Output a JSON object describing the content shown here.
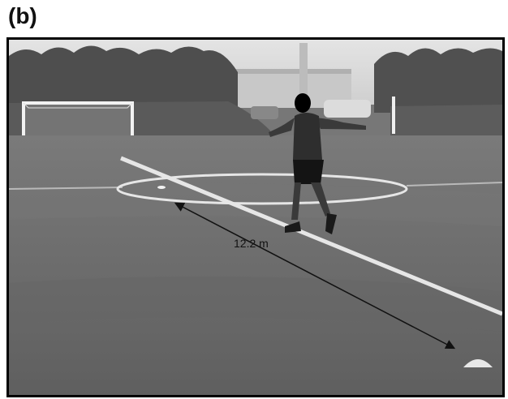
{
  "panel_label": "(b)",
  "measurement": {
    "distance_text": "12.2 m"
  },
  "colors": {
    "grass": "#6e6e6e",
    "line": "#e6e6e6",
    "sky": "#d8d8d8",
    "frame": "#000000"
  }
}
